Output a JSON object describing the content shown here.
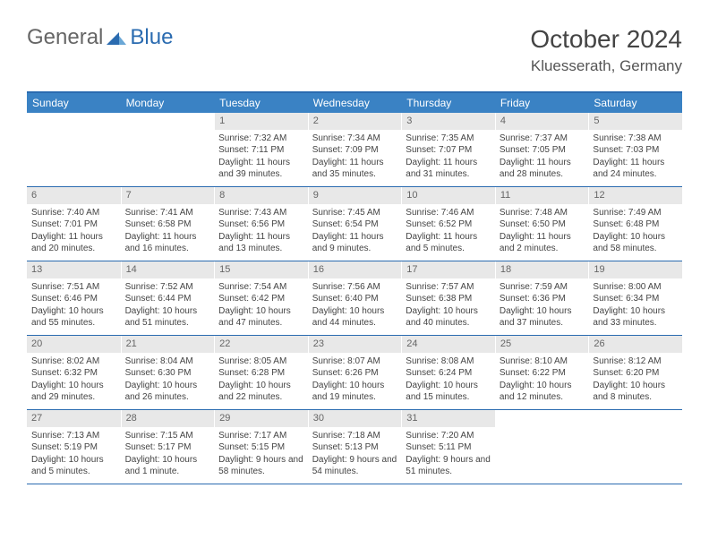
{
  "logo": {
    "text1": "General",
    "text2": "Blue"
  },
  "title": "October 2024",
  "location": "Kluesserath, Germany",
  "colors": {
    "header_bg": "#3a82c4",
    "border": "#2a6bb0",
    "daynum_bg": "#e8e8e8",
    "text": "#444444"
  },
  "dayNames": [
    "Sunday",
    "Monday",
    "Tuesday",
    "Wednesday",
    "Thursday",
    "Friday",
    "Saturday"
  ],
  "weeks": [
    [
      {
        "empty": true
      },
      {
        "empty": true
      },
      {
        "n": "1",
        "sr": "7:32 AM",
        "ss": "7:11 PM",
        "dl": "11 hours and 39 minutes."
      },
      {
        "n": "2",
        "sr": "7:34 AM",
        "ss": "7:09 PM",
        "dl": "11 hours and 35 minutes."
      },
      {
        "n": "3",
        "sr": "7:35 AM",
        "ss": "7:07 PM",
        "dl": "11 hours and 31 minutes."
      },
      {
        "n": "4",
        "sr": "7:37 AM",
        "ss": "7:05 PM",
        "dl": "11 hours and 28 minutes."
      },
      {
        "n": "5",
        "sr": "7:38 AM",
        "ss": "7:03 PM",
        "dl": "11 hours and 24 minutes."
      }
    ],
    [
      {
        "n": "6",
        "sr": "7:40 AM",
        "ss": "7:01 PM",
        "dl": "11 hours and 20 minutes."
      },
      {
        "n": "7",
        "sr": "7:41 AM",
        "ss": "6:58 PM",
        "dl": "11 hours and 16 minutes."
      },
      {
        "n": "8",
        "sr": "7:43 AM",
        "ss": "6:56 PM",
        "dl": "11 hours and 13 minutes."
      },
      {
        "n": "9",
        "sr": "7:45 AM",
        "ss": "6:54 PM",
        "dl": "11 hours and 9 minutes."
      },
      {
        "n": "10",
        "sr": "7:46 AM",
        "ss": "6:52 PM",
        "dl": "11 hours and 5 minutes."
      },
      {
        "n": "11",
        "sr": "7:48 AM",
        "ss": "6:50 PM",
        "dl": "11 hours and 2 minutes."
      },
      {
        "n": "12",
        "sr": "7:49 AM",
        "ss": "6:48 PM",
        "dl": "10 hours and 58 minutes."
      }
    ],
    [
      {
        "n": "13",
        "sr": "7:51 AM",
        "ss": "6:46 PM",
        "dl": "10 hours and 55 minutes."
      },
      {
        "n": "14",
        "sr": "7:52 AM",
        "ss": "6:44 PM",
        "dl": "10 hours and 51 minutes."
      },
      {
        "n": "15",
        "sr": "7:54 AM",
        "ss": "6:42 PM",
        "dl": "10 hours and 47 minutes."
      },
      {
        "n": "16",
        "sr": "7:56 AM",
        "ss": "6:40 PM",
        "dl": "10 hours and 44 minutes."
      },
      {
        "n": "17",
        "sr": "7:57 AM",
        "ss": "6:38 PM",
        "dl": "10 hours and 40 minutes."
      },
      {
        "n": "18",
        "sr": "7:59 AM",
        "ss": "6:36 PM",
        "dl": "10 hours and 37 minutes."
      },
      {
        "n": "19",
        "sr": "8:00 AM",
        "ss": "6:34 PM",
        "dl": "10 hours and 33 minutes."
      }
    ],
    [
      {
        "n": "20",
        "sr": "8:02 AM",
        "ss": "6:32 PM",
        "dl": "10 hours and 29 minutes."
      },
      {
        "n": "21",
        "sr": "8:04 AM",
        "ss": "6:30 PM",
        "dl": "10 hours and 26 minutes."
      },
      {
        "n": "22",
        "sr": "8:05 AM",
        "ss": "6:28 PM",
        "dl": "10 hours and 22 minutes."
      },
      {
        "n": "23",
        "sr": "8:07 AM",
        "ss": "6:26 PM",
        "dl": "10 hours and 19 minutes."
      },
      {
        "n": "24",
        "sr": "8:08 AM",
        "ss": "6:24 PM",
        "dl": "10 hours and 15 minutes."
      },
      {
        "n": "25",
        "sr": "8:10 AM",
        "ss": "6:22 PM",
        "dl": "10 hours and 12 minutes."
      },
      {
        "n": "26",
        "sr": "8:12 AM",
        "ss": "6:20 PM",
        "dl": "10 hours and 8 minutes."
      }
    ],
    [
      {
        "n": "27",
        "sr": "7:13 AM",
        "ss": "5:19 PM",
        "dl": "10 hours and 5 minutes."
      },
      {
        "n": "28",
        "sr": "7:15 AM",
        "ss": "5:17 PM",
        "dl": "10 hours and 1 minute."
      },
      {
        "n": "29",
        "sr": "7:17 AM",
        "ss": "5:15 PM",
        "dl": "9 hours and 58 minutes."
      },
      {
        "n": "30",
        "sr": "7:18 AM",
        "ss": "5:13 PM",
        "dl": "9 hours and 54 minutes."
      },
      {
        "n": "31",
        "sr": "7:20 AM",
        "ss": "5:11 PM",
        "dl": "9 hours and 51 minutes."
      },
      {
        "empty": true
      },
      {
        "empty": true
      }
    ]
  ],
  "labels": {
    "sunrise": "Sunrise:",
    "sunset": "Sunset:",
    "daylight": "Daylight:"
  }
}
